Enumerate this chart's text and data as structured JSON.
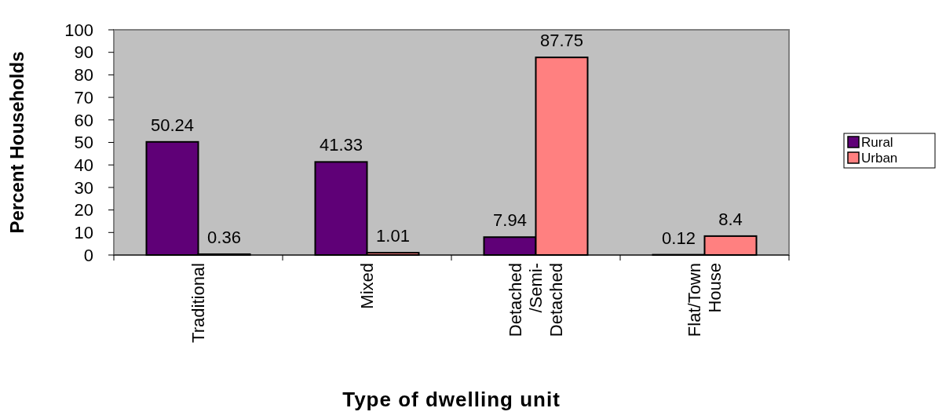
{
  "chart_data": {
    "type": "bar",
    "xlabel": "Type of dwelling unit",
    "ylabel": "Percent Households",
    "categories": [
      "Traditional",
      "Mixed",
      "Detached /Semi-Detached",
      "Flat/Town House"
    ],
    "series": [
      {
        "name": "Rural",
        "color": "#5f0077",
        "values": [
          50.24,
          41.33,
          7.94,
          0.12
        ]
      },
      {
        "name": "Urban",
        "color": "#ff8080",
        "values": [
          0.36,
          1.01,
          87.75,
          8.4
        ]
      }
    ],
    "ylim": [
      0,
      100
    ],
    "yticks": [
      0,
      10,
      20,
      30,
      40,
      50,
      60,
      70,
      80,
      90,
      100
    ],
    "grid": false,
    "legend": "right",
    "data_labels": true
  }
}
